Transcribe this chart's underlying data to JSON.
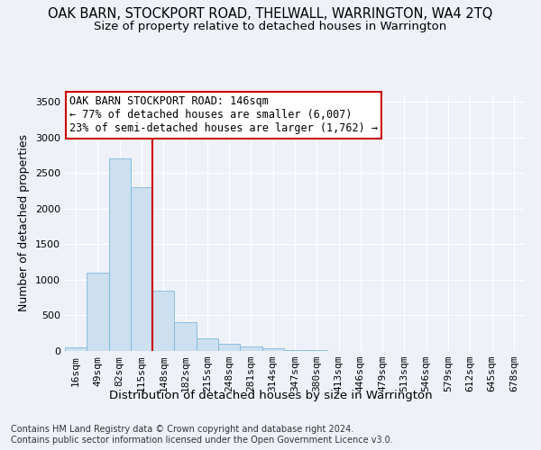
{
  "title": "OAK BARN, STOCKPORT ROAD, THELWALL, WARRINGTON, WA4 2TQ",
  "subtitle": "Size of property relative to detached houses in Warrington",
  "xlabel": "Distribution of detached houses by size in Warrington",
  "ylabel": "Number of detached properties",
  "bar_color": "#cce0f0",
  "bar_edge_color": "#7fb8d8",
  "vline_color": "#cc0000",
  "vline_x_idx": 4,
  "categories": [
    "16sqm",
    "49sqm",
    "82sqm",
    "115sqm",
    "148sqm",
    "182sqm",
    "215sqm",
    "248sqm",
    "281sqm",
    "314sqm",
    "347sqm",
    "380sqm",
    "413sqm",
    "446sqm",
    "479sqm",
    "513sqm",
    "546sqm",
    "579sqm",
    "612sqm",
    "645sqm",
    "678sqm"
  ],
  "values": [
    50,
    1100,
    2700,
    2300,
    850,
    400,
    175,
    100,
    60,
    35,
    15,
    10,
    5,
    3,
    2,
    1,
    1,
    0,
    0,
    0,
    0
  ],
  "ylim": [
    0,
    3600
  ],
  "yticks": [
    0,
    500,
    1000,
    1500,
    2000,
    2500,
    3000,
    3500
  ],
  "annotation_text": "OAK BARN STOCKPORT ROAD: 146sqm\n← 77% of detached houses are smaller (6,007)\n23% of semi-detached houses are larger (1,762) →",
  "annotation_box_color": "#ffffff",
  "annotation_box_edge": "#cc0000",
  "footnote1": "Contains HM Land Registry data © Crown copyright and database right 2024.",
  "footnote2": "Contains public sector information licensed under the Open Government Licence v3.0.",
  "background_color": "#eef2f8",
  "grid_color": "#ffffff",
  "title_fontsize": 10.5,
  "subtitle_fontsize": 9.5,
  "ylabel_fontsize": 9,
  "xlabel_fontsize": 9.5,
  "annotation_fontsize": 8.5,
  "tick_fontsize": 8,
  "footnote_fontsize": 7
}
